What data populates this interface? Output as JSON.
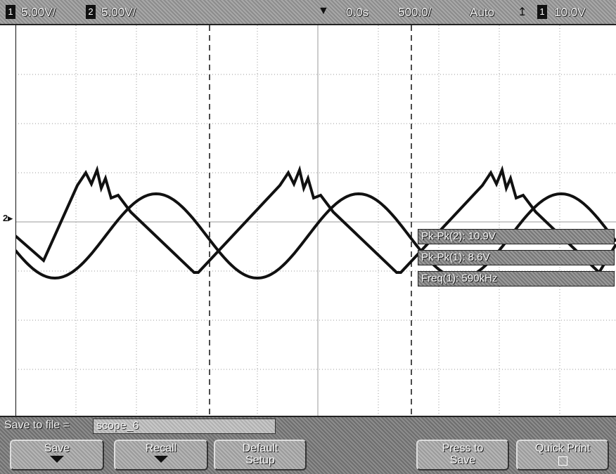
{
  "topbar": {
    "ch1_scale": "5.00V/",
    "ch2_scale": "5.00V/",
    "time_delay": "0.0s",
    "time_scale": "500.0/",
    "trigger_mode": "Auto",
    "trigger_level": "10.0V",
    "ch1_marker": "1",
    "ch2_marker": "2"
  },
  "screen": {
    "ground_marker_label": "2"
  },
  "measurements": [
    {
      "label": "Pk-Pk(2): 10.9V"
    },
    {
      "label": "Pk-Pk(1): 8.6V"
    },
    {
      "label": "Freq(1): 590kHz"
    }
  ],
  "bottombar": {
    "save_to_file_label": "Save to file =",
    "filename": "scope_6",
    "softkeys": {
      "save": "Save",
      "recall": "Recall",
      "default_setup_1": "Default",
      "default_setup_2": "Setup",
      "press_to_save_1": "Press to",
      "press_to_save_2": "Save",
      "quick_print": "Quick Print"
    }
  },
  "colors": {
    "trace": "#111111",
    "grid": "#9a9a9a",
    "bar_bg": "#8c8c8c"
  }
}
